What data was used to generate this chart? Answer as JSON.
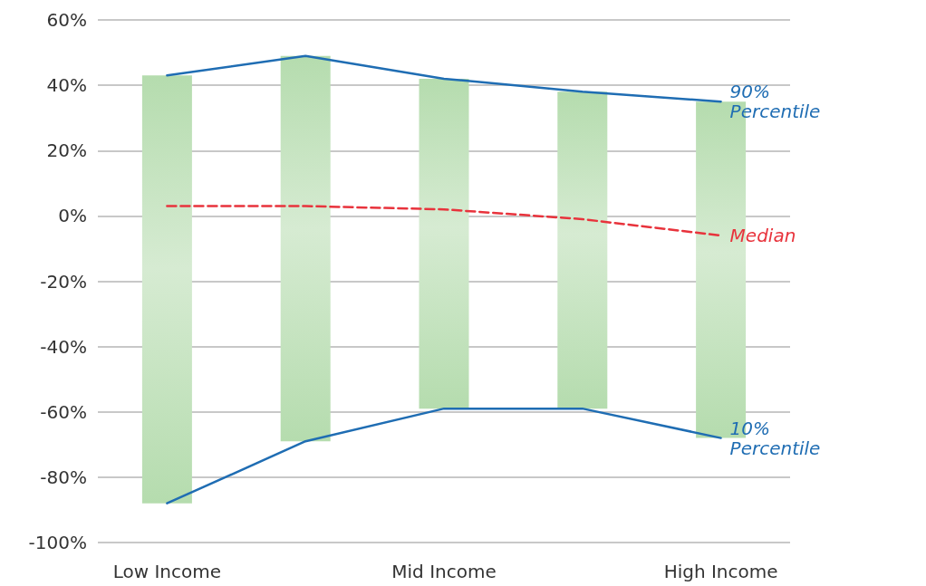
{
  "chart_data": {
    "type": "bar",
    "categories": [
      "Low Income",
      null,
      "Mid Income",
      null,
      "High Income"
    ],
    "series": [
      {
        "type": "bar",
        "color": "#b5dcae",
        "base": [
          -88,
          -69,
          -59,
          -59,
          -68
        ],
        "values": [
          131,
          118,
          101,
          97,
          103
        ]
      },
      {
        "type": "line",
        "name": "90% Percentile",
        "color": "#1f6db3",
        "values": [
          43,
          49,
          42,
          38,
          35
        ]
      },
      {
        "type": "line",
        "name": "Median",
        "color": "#e8333c",
        "line_style": "dashed",
        "values": [
          3,
          3,
          2,
          -1,
          -6
        ]
      },
      {
        "type": "line",
        "name": "10% Percentile",
        "color": "#1f6db3",
        "values": [
          -88,
          -69,
          -59,
          -59,
          -68
        ]
      }
    ],
    "ylim": [
      -100,
      60
    ],
    "yticks": [
      {
        "value": -100,
        "label": "-100%"
      },
      {
        "value": -80,
        "label": "-80%"
      },
      {
        "value": -60,
        "label": "-60%"
      },
      {
        "value": -40,
        "label": "-40%"
      },
      {
        "value": -20,
        "label": "-20%"
      },
      {
        "value": 0,
        "label": "0%"
      },
      {
        "value": 20,
        "label": "20%"
      },
      {
        "value": 40,
        "label": "40%"
      },
      {
        "value": 60,
        "label": "60%"
      }
    ],
    "grid": "y",
    "marker": "none",
    "legend": false
  }
}
